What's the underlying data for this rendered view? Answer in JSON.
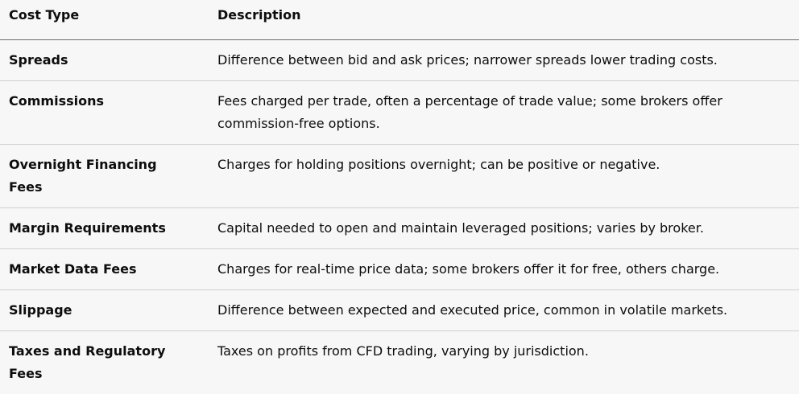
{
  "table": {
    "headers": [
      "Cost Type",
      "Description"
    ],
    "rows": [
      {
        "type": "Spreads",
        "description": "Difference between bid and ask prices; narrower spreads lower trading costs."
      },
      {
        "type": "Commissions",
        "description": "Fees charged per trade, often a percentage of trade value; some brokers offer commission-free options."
      },
      {
        "type": "Overnight Financing Fees",
        "description": "Charges for holding positions overnight; can be positive or negative."
      },
      {
        "type": "Margin Requirements",
        "description": "Capital needed to open and maintain leveraged positions; varies by broker."
      },
      {
        "type": "Market Data Fees",
        "description": "Charges for real-time price data; some brokers offer it for free, others charge."
      },
      {
        "type": "Slippage",
        "description": "Difference between expected and executed price, common in volatile markets."
      },
      {
        "type": "Taxes and Regulatory Fees",
        "description": "Taxes on profits from CFD trading, varying by jurisdiction."
      }
    ]
  }
}
